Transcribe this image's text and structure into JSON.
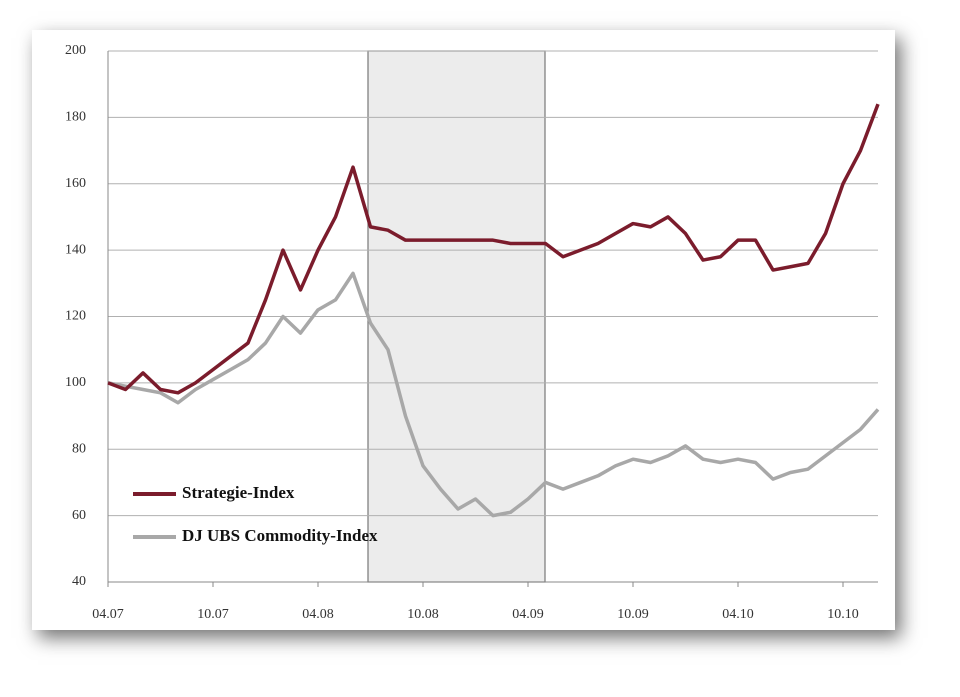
{
  "chart_data": {
    "type": "line",
    "categories": [
      "04.07",
      null,
      null,
      null,
      null,
      null,
      "10.07",
      null,
      null,
      null,
      null,
      null,
      "04.08",
      null,
      null,
      null,
      null,
      null,
      "10.08",
      null,
      null,
      null,
      null,
      null,
      "04.09",
      null,
      null,
      null,
      null,
      null,
      "10.09",
      null,
      null,
      null,
      null,
      null,
      "04.10",
      null,
      null,
      null,
      null,
      null,
      "10.10",
      null,
      null
    ],
    "series": [
      {
        "name": "Strategie-Index",
        "color": "#7b1c2c",
        "values": [
          100,
          98,
          103,
          98,
          97,
          100,
          104,
          108,
          112,
          125,
          140,
          128,
          140,
          150,
          165,
          147,
          146,
          143,
          143,
          143,
          143,
          143,
          143,
          142,
          142,
          142,
          138,
          140,
          142,
          145,
          148,
          147,
          150,
          145,
          137,
          138,
          143,
          143,
          134,
          135,
          136,
          145,
          160,
          170,
          184
        ]
      },
      {
        "name": "DJ UBS Commodity-Index",
        "color": "#a8a8a8",
        "values": [
          100,
          99,
          98,
          97,
          94,
          98,
          101,
          104,
          107,
          112,
          120,
          115,
          122,
          125,
          133,
          118,
          110,
          90,
          75,
          68,
          62,
          65,
          60,
          61,
          65,
          70,
          68,
          70,
          72,
          75,
          77,
          76,
          78,
          81,
          77,
          76,
          77,
          76,
          71,
          73,
          74,
          78,
          82,
          86,
          92
        ]
      }
    ],
    "ylim": [
      40,
      200
    ],
    "yticks": [
      40,
      60,
      80,
      100,
      120,
      140,
      160,
      180,
      200
    ],
    "grid": true
  }
}
